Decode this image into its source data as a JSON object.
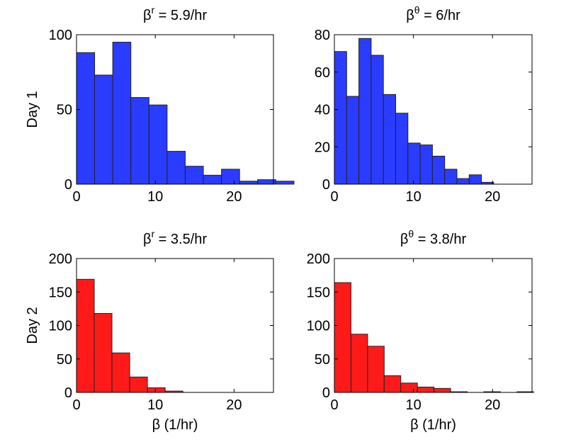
{
  "chart_data": [
    {
      "type": "bar",
      "title_base": "β",
      "title_sup": "r",
      "title_rest": " = 5.9/hr",
      "ylabel": "Day 1",
      "xlabel": "",
      "color": "#2a3cff",
      "xlim": [
        0,
        25
      ],
      "ylim": [
        0,
        100
      ],
      "xticks": [
        0,
        10,
        20
      ],
      "yticks": [
        0,
        50,
        100
      ],
      "bin_width": 2.3,
      "bin_start": 0,
      "values": [
        88,
        73,
        95,
        58,
        53,
        22,
        12,
        6,
        10,
        2,
        3,
        2
      ]
    },
    {
      "type": "bar",
      "title_base": "β",
      "title_sup": "θ",
      "title_rest": " = 6/hr",
      "ylabel": "",
      "xlabel": "",
      "color": "#2a3cff",
      "xlim": [
        0,
        25
      ],
      "ylim": [
        0,
        80
      ],
      "xticks": [
        0,
        10,
        20
      ],
      "yticks": [
        0,
        20,
        40,
        60,
        80
      ],
      "bin_width": 1.55,
      "bin_start": 0,
      "values": [
        71,
        47,
        78,
        69,
        48,
        38,
        22,
        21,
        15,
        8,
        3,
        5,
        1
      ]
    },
    {
      "type": "bar",
      "title_base": "β",
      "title_sup": "r",
      "title_rest": " = 3.5/hr",
      "ylabel": "Day 2",
      "xlabel": "β (1/hr)",
      "color": "#ff1a1a",
      "xlim": [
        0,
        25
      ],
      "ylim": [
        0,
        200
      ],
      "xticks": [
        0,
        10,
        20
      ],
      "yticks": [
        0,
        50,
        100,
        150,
        200
      ],
      "bin_width": 2.25,
      "bin_start": 0,
      "values": [
        169,
        118,
        59,
        23,
        7,
        2,
        0,
        0,
        0,
        0
      ]
    },
    {
      "type": "bar",
      "title_base": "β",
      "title_sup": "θ",
      "title_rest": " = 3.8/hr",
      "ylabel": "",
      "xlabel": "β (1/hr)",
      "color": "#ff1a1a",
      "xlim": [
        0,
        25
      ],
      "ylim": [
        0,
        200
      ],
      "xticks": [
        0,
        10,
        20
      ],
      "yticks": [
        0,
        50,
        100,
        150,
        200
      ],
      "bin_width": 2.1,
      "bin_start": 0,
      "values": [
        164,
        87,
        69,
        25,
        14,
        8,
        6,
        1,
        0,
        1,
        0,
        1
      ]
    }
  ]
}
